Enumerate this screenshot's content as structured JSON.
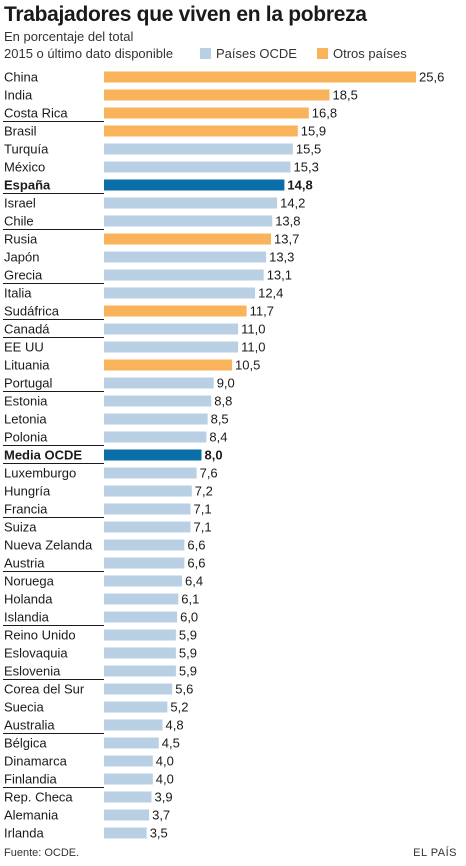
{
  "colors": {
    "ocde": "#b9cfe3",
    "otros": "#f8b35b",
    "highlight": "#0a6ea8",
    "separator": "#1a1a1a"
  },
  "chart_data": {
    "type": "bar",
    "orientation": "horizontal",
    "title": "Trabajadores que viven en la pobreza",
    "subtitle": [
      "En porcentaje del total",
      "2015 o último dato disponible"
    ],
    "legend": [
      {
        "name": "Países OCDE",
        "color": "#b9cfe3"
      },
      {
        "name": "Otros países",
        "color": "#f8b35b"
      }
    ],
    "xlim": [
      0,
      25.6
    ],
    "grid": false,
    "source": "Fuente: OCDE.",
    "credit": "EL PAÍS",
    "rows": [
      {
        "name": "China",
        "value": 25.6,
        "label": "25,6",
        "group": "otros"
      },
      {
        "name": "India",
        "value": 18.5,
        "label": "18,5",
        "group": "otros"
      },
      {
        "name": "Costa Rica",
        "value": 16.8,
        "label": "16,8",
        "group": "otros"
      },
      {
        "name": "Brasil",
        "value": 15.9,
        "label": "15,9",
        "group": "otros"
      },
      {
        "name": "Turquía",
        "value": 15.5,
        "label": "15,5",
        "group": "ocde"
      },
      {
        "name": "México",
        "value": 15.3,
        "label": "15,3",
        "group": "ocde"
      },
      {
        "name": "España",
        "value": 14.8,
        "label": "14,8",
        "group": "highlight"
      },
      {
        "name": "Israel",
        "value": 14.2,
        "label": "14,2",
        "group": "ocde"
      },
      {
        "name": "Chile",
        "value": 13.8,
        "label": "13,8",
        "group": "ocde"
      },
      {
        "name": "Rusia",
        "value": 13.7,
        "label": "13,7",
        "group": "otros"
      },
      {
        "name": "Japón",
        "value": 13.3,
        "label": "13,3",
        "group": "ocde"
      },
      {
        "name": "Grecia",
        "value": 13.1,
        "label": "13,1",
        "group": "ocde"
      },
      {
        "name": "Italia",
        "value": 12.4,
        "label": "12,4",
        "group": "ocde"
      },
      {
        "name": "Sudáfrica",
        "value": 11.7,
        "label": "11,7",
        "group": "otros"
      },
      {
        "name": "Canadá",
        "value": 11.0,
        "label": "11,0",
        "group": "ocde"
      },
      {
        "name": "EE UU",
        "value": 11.0,
        "label": "11,0",
        "group": "ocde"
      },
      {
        "name": "Lituania",
        "value": 10.5,
        "label": "10,5",
        "group": "otros"
      },
      {
        "name": "Portugal",
        "value": 9.0,
        "label": "9,0",
        "group": "ocde"
      },
      {
        "name": "Estonia",
        "value": 8.8,
        "label": "8,8",
        "group": "ocde"
      },
      {
        "name": "Letonia",
        "value": 8.5,
        "label": "8,5",
        "group": "ocde"
      },
      {
        "name": "Polonia",
        "value": 8.4,
        "label": "8,4",
        "group": "ocde"
      },
      {
        "name": "Media OCDE",
        "value": 8.0,
        "label": "8,0",
        "group": "highlight"
      },
      {
        "name": "Luxemburgo",
        "value": 7.6,
        "label": "7,6",
        "group": "ocde"
      },
      {
        "name": "Hungría",
        "value": 7.2,
        "label": "7,2",
        "group": "ocde"
      },
      {
        "name": "Francia",
        "value": 7.1,
        "label": "7,1",
        "group": "ocde"
      },
      {
        "name": "Suiza",
        "value": 7.1,
        "label": "7,1",
        "group": "ocde"
      },
      {
        "name": "Nueva Zelanda",
        "value": 6.6,
        "label": "6,6",
        "group": "ocde"
      },
      {
        "name": "Austria",
        "value": 6.6,
        "label": "6,6",
        "group": "ocde"
      },
      {
        "name": "Noruega",
        "value": 6.4,
        "label": "6,4",
        "group": "ocde"
      },
      {
        "name": "Holanda",
        "value": 6.1,
        "label": "6,1",
        "group": "ocde"
      },
      {
        "name": "Islandia",
        "value": 6.0,
        "label": "6,0",
        "group": "ocde"
      },
      {
        "name": "Reino Unido",
        "value": 5.9,
        "label": "5,9",
        "group": "ocde"
      },
      {
        "name": "Eslovaquia",
        "value": 5.9,
        "label": "5,9",
        "group": "ocde"
      },
      {
        "name": "Eslovenia",
        "value": 5.9,
        "label": "5,9",
        "group": "ocde"
      },
      {
        "name": "Corea del Sur",
        "value": 5.6,
        "label": "5,6",
        "group": "ocde"
      },
      {
        "name": "Suecia",
        "value": 5.2,
        "label": "5,2",
        "group": "ocde"
      },
      {
        "name": "Australia",
        "value": 4.8,
        "label": "4,8",
        "group": "ocde"
      },
      {
        "name": "Bélgica",
        "value": 4.5,
        "label": "4,5",
        "group": "ocde"
      },
      {
        "name": "Dinamarca",
        "value": 4.0,
        "label": "4,0",
        "group": "ocde"
      },
      {
        "name": "Finlandia",
        "value": 4.0,
        "label": "4,0",
        "group": "ocde"
      },
      {
        "name": "Rep. Checa",
        "value": 3.9,
        "label": "3,9",
        "group": "ocde"
      },
      {
        "name": "Alemania",
        "value": 3.7,
        "label": "3,7",
        "group": "ocde"
      },
      {
        "name": "Irlanda",
        "value": 3.5,
        "label": "3,5",
        "group": "ocde"
      }
    ]
  }
}
